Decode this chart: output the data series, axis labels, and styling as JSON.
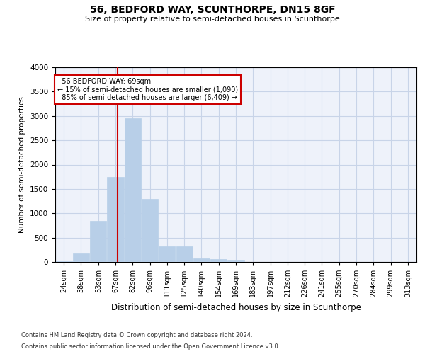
{
  "title": "56, BEDFORD WAY, SCUNTHORPE, DN15 8GF",
  "subtitle": "Size of property relative to semi-detached houses in Scunthorpe",
  "xlabel": "Distribution of semi-detached houses by size in Scunthorpe",
  "ylabel": "Number of semi-detached properties",
  "categories": [
    "24sqm",
    "38sqm",
    "53sqm",
    "67sqm",
    "82sqm",
    "96sqm",
    "111sqm",
    "125sqm",
    "140sqm",
    "154sqm",
    "169sqm",
    "183sqm",
    "197sqm",
    "212sqm",
    "226sqm",
    "241sqm",
    "255sqm",
    "270sqm",
    "284sqm",
    "299sqm",
    "313sqm"
  ],
  "values": [
    20,
    180,
    850,
    1750,
    2950,
    1300,
    320,
    320,
    80,
    60,
    50,
    0,
    0,
    0,
    0,
    0,
    0,
    0,
    0,
    0,
    0
  ],
  "bar_color": "#b8cfe8",
  "bar_edgecolor": "#b8cfe8",
  "annotation_box_color": "#cc0000",
  "grid_color": "#c8d4e8",
  "background_color": "#eef2fa",
  "footnote1": "Contains HM Land Registry data © Crown copyright and database right 2024.",
  "footnote2": "Contains public sector information licensed under the Open Government Licence v3.0.",
  "property_label": "56 BEDFORD WAY: 69sqm",
  "smaller_pct": "15%",
  "smaller_count": "1,090",
  "larger_pct": "85%",
  "larger_count": "6,409",
  "ylim": [
    0,
    4000
  ]
}
